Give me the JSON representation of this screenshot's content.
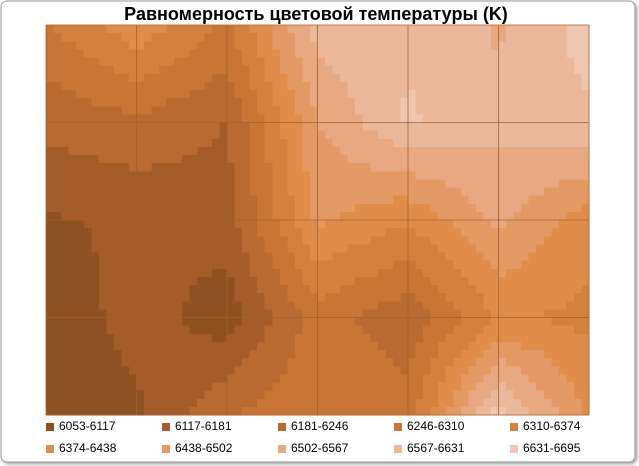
{
  "chart_data": {
    "type": "contour",
    "title": "Равномерность цветовой температуры (K)",
    "values": [
      [
        6300,
        6420,
        6300,
        6600,
        6620,
        6560,
        6660
      ],
      [
        6200,
        6230,
        6180,
        6500,
        6640,
        6580,
        6620
      ],
      [
        6110,
        6130,
        6150,
        6450,
        6380,
        6520,
        6400
      ],
      [
        6060,
        6150,
        6080,
        6280,
        6200,
        6380,
        6360
      ],
      [
        6060,
        6100,
        6240,
        6300,
        6280,
        6660,
        6420
      ]
    ],
    "bands": [
      {
        "range": [
          6053,
          6117
        ],
        "label": "6053-6117",
        "color": "#8e5122"
      },
      {
        "range": [
          6117,
          6181
        ],
        "label": "6117-6181",
        "color": "#a35c2a"
      },
      {
        "range": [
          6181,
          6246
        ],
        "label": "6181-6246",
        "color": "#b86a31"
      },
      {
        "range": [
          6246,
          6310
        ],
        "label": "6246-6310",
        "color": "#c87535"
      },
      {
        "range": [
          6310,
          6374
        ],
        "label": "6310-6374",
        "color": "#d5813e"
      },
      {
        "range": [
          6374,
          6438
        ],
        "label": "6374-6438",
        "color": "#e08d4b"
      },
      {
        "range": [
          6438,
          6502
        ],
        "label": "6438-6502",
        "color": "#e49a64"
      },
      {
        "range": [
          6502,
          6567
        ],
        "label": "6502-6567",
        "color": "#e8a982"
      },
      {
        "range": [
          6567,
          6631
        ],
        "label": "6567-6631",
        "color": "#ecb89c"
      },
      {
        "range": [
          6631,
          6695
        ],
        "label": "6631-6695",
        "color": "#efc6b2"
      }
    ],
    "grid": true
  }
}
